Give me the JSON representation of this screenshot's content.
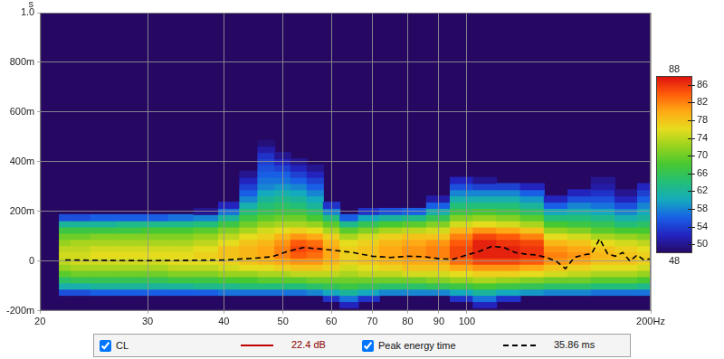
{
  "chart_data": {
    "type": "heatmap",
    "y_label": "s",
    "log": "x",
    "grid": true,
    "xlim": [
      20,
      200
    ],
    "xticks": [
      20,
      30,
      40,
      50,
      60,
      70,
      80,
      90,
      100,
      {
        "value": 200,
        "label": "200Hz"
      }
    ],
    "ylim": [
      -0.2,
      1.0
    ],
    "yticks": [
      {
        "value": -0.2,
        "label": "-200m"
      },
      0,
      {
        "value": 0.2,
        "label": "200m"
      },
      {
        "value": 0.4,
        "label": "400m"
      },
      {
        "value": 0.6,
        "label": "600m"
      },
      {
        "value": 0.8,
        "label": "800m"
      },
      {
        "value": 1.0,
        "label": "1.0"
      }
    ],
    "colorbar": {
      "range": [
        48,
        88
      ],
      "ticks": [
        48,
        50,
        54,
        58,
        62,
        66,
        70,
        74,
        78,
        82,
        86,
        88
      ]
    },
    "heatmap": {
      "name": "CL",
      "color": "#c00000",
      "readout": "22.4 dB",
      "x": [
        22,
        23,
        25.5,
        28,
        31,
        34,
        37.5,
        41,
        44,
        47,
        50,
        53,
        56.5,
        60,
        64,
        69,
        75,
        82,
        90,
        98,
        107,
        117,
        128,
        140,
        153,
        167,
        183,
        198
      ],
      "y": [
        -0.175,
        -0.15,
        -0.125,
        -0.1,
        -0.075,
        -0.05,
        -0.025,
        0,
        0.025,
        0.05,
        0.075,
        0.1,
        0.125,
        0.15,
        0.175,
        0.2,
        0.225,
        0.25,
        0.275,
        0.3,
        0.325,
        0.35,
        0.375,
        0.4,
        0.425,
        0.45,
        0.475
      ],
      "cells": [
        [
          null,
          null,
          55,
          61,
          65,
          69,
          72,
          74,
          75,
          74,
          72,
          70,
          67,
          62,
          55,
          null,
          null,
          null,
          null,
          null,
          null,
          null,
          null,
          null,
          null,
          null,
          null
        ],
        [
          null,
          null,
          55,
          61,
          66,
          70,
          73,
          75,
          75,
          74,
          73,
          70,
          67,
          62,
          55,
          null,
          null,
          null,
          null,
          null,
          null,
          null,
          null,
          null,
          null,
          null,
          null
        ],
        [
          null,
          null,
          56,
          62,
          66,
          70,
          73,
          75,
          76,
          75,
          73,
          71,
          67,
          62,
          56,
          null,
          null,
          null,
          null,
          null,
          null,
          null,
          null,
          null,
          null,
          null,
          null
        ],
        [
          null,
          null,
          56,
          62,
          66,
          70,
          73,
          75,
          76,
          75,
          73,
          71,
          67,
          63,
          56,
          null,
          null,
          null,
          null,
          null,
          null,
          null,
          null,
          null,
          null,
          null,
          null
        ],
        [
          null,
          null,
          56,
          62,
          66,
          70,
          73,
          75,
          76,
          75,
          73,
          71,
          68,
          63,
          56,
          null,
          null,
          null,
          null,
          null,
          null,
          null,
          null,
          null,
          null,
          null,
          null
        ],
        [
          null,
          null,
          56,
          62,
          67,
          71,
          74,
          76,
          76,
          75,
          73,
          71,
          68,
          63,
          57,
          null,
          null,
          null,
          null,
          null,
          null,
          null,
          null,
          null,
          null,
          null,
          null
        ],
        [
          null,
          null,
          56,
          63,
          67,
          71,
          74,
          76,
          77,
          76,
          74,
          72,
          69,
          64,
          58,
          50,
          null,
          null,
          null,
          null,
          null,
          null,
          null,
          null,
          null,
          null,
          null
        ],
        [
          null,
          null,
          57,
          63,
          68,
          72,
          75,
          77,
          78,
          78,
          76,
          74,
          71,
          67,
          62,
          57,
          52,
          null,
          null,
          null,
          null,
          null,
          null,
          null,
          null,
          null,
          null
        ],
        [
          null,
          null,
          57,
          64,
          68,
          72,
          76,
          78,
          79,
          79,
          78,
          76,
          73,
          70,
          67,
          64,
          61,
          58,
          56,
          54,
          52,
          50,
          null,
          null,
          null,
          null,
          null
        ],
        [
          null,
          null,
          57,
          64,
          69,
          73,
          76,
          79,
          80,
          80,
          79,
          77,
          75,
          72,
          69,
          66,
          64,
          62,
          60,
          58,
          57,
          56,
          55,
          54,
          53,
          51,
          49
        ],
        [
          null,
          null,
          57,
          64,
          69,
          73,
          77,
          80,
          82,
          82,
          81,
          79,
          76,
          73,
          70,
          67,
          65,
          63,
          61,
          59,
          57,
          56,
          54,
          52,
          50,
          null,
          null
        ],
        [
          null,
          null,
          57,
          64,
          69,
          74,
          78,
          81,
          84,
          85,
          84,
          81,
          77,
          73,
          70,
          67,
          64,
          62,
          60,
          58,
          56,
          54,
          52,
          50,
          null,
          null,
          null
        ],
        [
          null,
          null,
          58,
          65,
          70,
          74,
          78,
          81,
          83,
          84,
          83,
          80,
          76,
          72,
          68,
          65,
          62,
          60,
          58,
          56,
          54,
          52,
          50,
          null,
          null,
          null,
          null
        ],
        [
          null,
          53,
          60,
          66,
          70,
          74,
          77,
          79,
          80,
          80,
          79,
          77,
          73,
          69,
          64,
          58,
          53,
          null,
          null,
          null,
          null,
          null,
          null,
          null,
          null,
          null,
          null
        ],
        [
          52,
          57,
          62,
          67,
          70,
          73,
          75,
          77,
          77,
          77,
          76,
          73,
          69,
          63,
          56,
          null,
          null,
          null,
          null,
          null,
          null,
          null,
          null,
          null,
          null,
          null,
          null
        ],
        [
          null,
          53,
          60,
          66,
          70,
          74,
          76,
          78,
          78,
          78,
          77,
          75,
          71,
          66,
          60,
          53,
          null,
          null,
          null,
          null,
          null,
          null,
          null,
          null,
          null,
          null,
          null
        ],
        [
          null,
          null,
          58,
          65,
          70,
          74,
          77,
          79,
          80,
          80,
          79,
          77,
          73,
          68,
          62,
          55,
          null,
          null,
          null,
          null,
          null,
          null,
          null,
          null,
          null,
          null,
          null
        ],
        [
          null,
          null,
          58,
          65,
          70,
          75,
          78,
          80,
          81,
          81,
          80,
          78,
          74,
          69,
          63,
          56,
          null,
          null,
          null,
          null,
          null,
          null,
          null,
          null,
          null,
          null,
          null
        ],
        [
          null,
          null,
          58,
          66,
          71,
          75,
          78,
          80,
          82,
          82,
          81,
          78,
          75,
          71,
          66,
          61,
          56,
          51,
          null,
          null,
          null,
          null,
          null,
          null,
          null,
          null,
          null
        ],
        [
          null,
          53,
          60,
          67,
          72,
          76,
          80,
          83,
          85,
          85,
          84,
          82,
          79,
          75,
          71,
          67,
          64,
          61,
          58,
          55,
          52,
          null,
          null,
          null,
          null,
          null,
          null
        ],
        [
          52,
          57,
          62,
          68,
          73,
          77,
          81,
          85,
          87,
          87,
          87,
          85,
          81,
          76,
          72,
          68,
          64,
          61,
          58,
          54,
          50,
          null,
          null,
          null,
          null,
          null,
          null
        ],
        [
          null,
          53,
          60,
          67,
          72,
          77,
          81,
          85,
          87,
          87,
          86,
          84,
          80,
          75,
          71,
          67,
          64,
          61,
          58,
          54,
          null,
          null,
          null,
          null,
          null,
          null,
          null
        ],
        [
          null,
          null,
          59,
          66,
          71,
          76,
          80,
          84,
          86,
          86,
          85,
          82,
          78,
          73,
          69,
          65,
          62,
          59,
          56,
          52,
          null,
          null,
          null,
          null,
          null,
          null,
          null
        ],
        [
          null,
          null,
          58,
          65,
          70,
          75,
          78,
          81,
          82,
          81,
          79,
          76,
          72,
          68,
          64,
          60,
          56,
          52,
          null,
          null,
          null,
          null,
          null,
          null,
          null,
          null,
          null
        ],
        [
          null,
          null,
          58,
          65,
          70,
          74,
          77,
          80,
          81,
          80,
          78,
          75,
          71,
          67,
          64,
          61,
          58,
          55,
          52,
          null,
          null,
          null,
          null,
          null,
          null,
          null,
          null
        ],
        [
          null,
          null,
          57,
          64,
          69,
          73,
          76,
          78,
          79,
          78,
          76,
          73,
          69,
          66,
          63,
          60,
          57,
          55,
          53,
          51,
          50,
          null,
          null,
          null,
          null,
          null,
          null
        ],
        [
          null,
          null,
          57,
          64,
          69,
          73,
          76,
          78,
          78,
          77,
          75,
          72,
          68,
          64,
          61,
          58,
          55,
          52,
          50,
          null,
          null,
          null,
          null,
          null,
          null,
          null,
          null
        ],
        [
          null,
          null,
          57,
          63,
          68,
          72,
          75,
          77,
          77,
          76,
          74,
          71,
          68,
          65,
          62,
          60,
          58,
          56,
          54,
          52,
          null,
          null,
          null,
          null,
          null,
          null,
          null
        ]
      ]
    },
    "series": [
      {
        "name": "Peak energy time",
        "type": "line",
        "color": "#000000",
        "line_style": "dashed",
        "readout": "35.86 ms",
        "x": [
          22,
          30,
          40,
          45,
          48,
          51,
          54,
          57,
          60,
          65,
          70,
          75,
          80,
          85,
          90,
          95,
          100,
          105,
          110,
          115,
          120,
          125,
          130,
          135,
          140,
          145,
          150,
          155,
          160,
          165,
          170,
          175,
          180,
          185,
          190,
          195,
          200
        ],
        "values": [
          0.005,
          0.002,
          0.005,
          0.012,
          0.018,
          0.04,
          0.055,
          0.05,
          0.045,
          0.035,
          0.02,
          0.015,
          0.02,
          0.018,
          0.01,
          0.008,
          0.025,
          0.04,
          0.06,
          0.055,
          0.035,
          0.028,
          0.025,
          0.015,
          0,
          -0.03,
          0.015,
          0.025,
          0.03,
          0.09,
          0.03,
          0.02,
          0.035,
          0,
          0.025,
          0.005,
          0.01
        ]
      }
    ]
  }
}
